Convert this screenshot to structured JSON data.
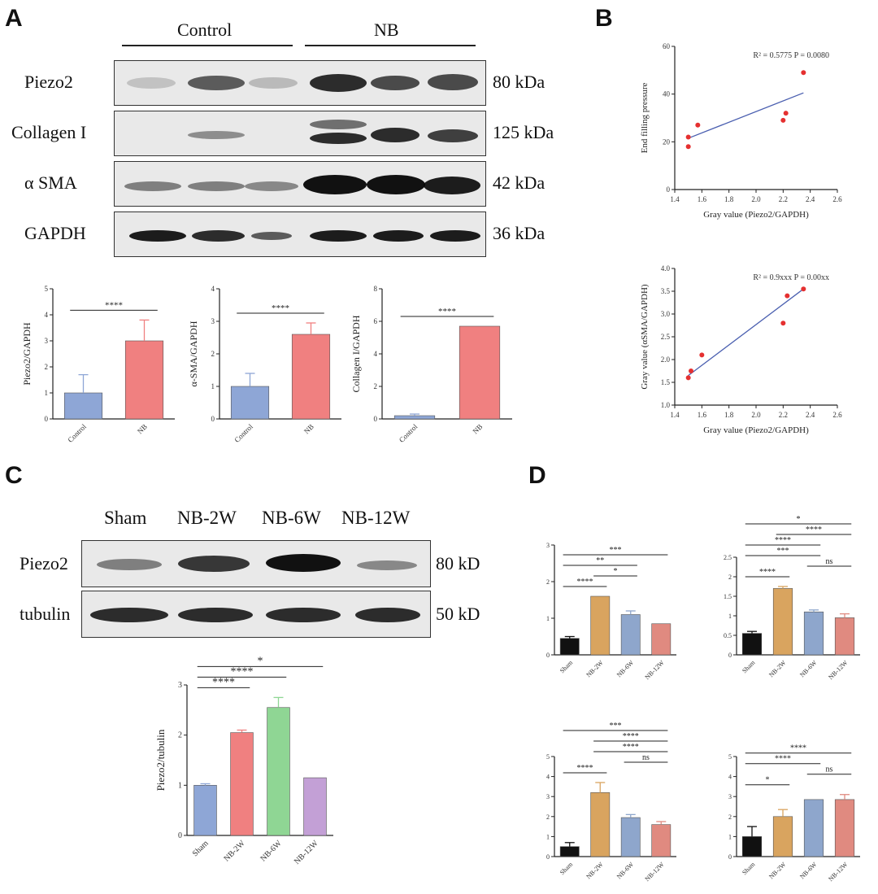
{
  "panels": {
    "A": "A",
    "B": "B",
    "C": "C",
    "D": "D"
  },
  "panelA": {
    "groups": [
      "Control",
      "NB"
    ],
    "blots": [
      {
        "label": "Piezo2",
        "kda": "80 kDa"
      },
      {
        "label": "Collagen I",
        "kda": "125 kDa"
      },
      {
        "label": "α SMA",
        "kda": "42 kDa"
      },
      {
        "label": "GAPDH",
        "kda": "36 kDa"
      }
    ]
  },
  "panelC": {
    "lanes": [
      "Sham",
      "NB-2W",
      "NB-6W",
      "NB-12W"
    ],
    "blots": [
      {
        "label": "Piezo2",
        "kda": "80 kD"
      },
      {
        "label": "tubulin",
        "kda": "50 kD"
      }
    ]
  },
  "colors": {
    "blue": "#8ea6d6",
    "red": "#f08080",
    "green": "#8fd694",
    "purple": "#c3a0d6",
    "black": "#111111",
    "orange": "#d9a45f",
    "steel": "#8ea6cc",
    "salmon": "#e08a80",
    "fit": "#4a5fb0",
    "point": "#e53030"
  },
  "chart_data": [
    {
      "id": "A1",
      "type": "bar",
      "categories": [
        "Control",
        "NB"
      ],
      "values": [
        1.0,
        3.0
      ],
      "errors": [
        0.7,
        0.8
      ],
      "ylim": [
        0,
        5
      ],
      "yticks": [
        0,
        1,
        2,
        3,
        4,
        5
      ],
      "ylabel": "Piezo2/GAPDH",
      "sig": [
        {
          "from": 0,
          "to": 1,
          "label": "****"
        }
      ]
    },
    {
      "id": "A2",
      "type": "bar",
      "categories": [
        "Control",
        "NB"
      ],
      "values": [
        1.0,
        2.6
      ],
      "errors": [
        0.4,
        0.35
      ],
      "ylim": [
        0,
        4
      ],
      "yticks": [
        0,
        1,
        2,
        3,
        4
      ],
      "ylabel": "α-SMA/GAPDH",
      "sig": [
        {
          "from": 0,
          "to": 1,
          "label": "****"
        }
      ]
    },
    {
      "id": "A3",
      "type": "bar",
      "categories": [
        "Control",
        "NB"
      ],
      "values": [
        0.2,
        5.7
      ],
      "errors": [
        0.1,
        0.0
      ],
      "ylim": [
        0,
        8
      ],
      "yticks": [
        0,
        2,
        4,
        6,
        8
      ],
      "ylabel": "Collagen I/GAPDH",
      "sig": [
        {
          "from": 0,
          "to": 1,
          "label": "****"
        }
      ]
    },
    {
      "id": "B1",
      "type": "scatter",
      "x": [
        1.5,
        1.5,
        1.57,
        2.2,
        2.22,
        2.35
      ],
      "y": [
        18,
        22,
        27,
        29,
        32,
        49
      ],
      "fit": [
        [
          1.5,
          21.5
        ],
        [
          2.35,
          40.5
        ]
      ],
      "xlim": [
        1.4,
        2.6
      ],
      "ylim": [
        0,
        60
      ],
      "xticks": [
        "1.4",
        "1.6",
        "1.8",
        "2.0",
        "2.2",
        "2.4",
        "2.6"
      ],
      "yticks": [
        "0",
        "20",
        "40",
        "60"
      ],
      "xlabel": "Gray value (Piezo2/GAPDH)",
      "ylabel": "End filling pressure",
      "annotation": "R² = 0.5775   P = 0.0080"
    },
    {
      "id": "B2",
      "type": "scatter",
      "x": [
        1.5,
        1.52,
        1.6,
        2.2,
        2.23,
        2.35
      ],
      "y": [
        1.6,
        1.75,
        2.1,
        2.8,
        3.4,
        3.55
      ],
      "fit": [
        [
          1.5,
          1.65
        ],
        [
          2.35,
          3.55
        ]
      ],
      "xlim": [
        1.4,
        2.6
      ],
      "ylim": [
        1.0,
        4.0
      ],
      "xticks": [
        "1.4",
        "1.6",
        "1.8",
        "2.0",
        "2.2",
        "2.4",
        "2.6"
      ],
      "yticks": [
        "1.0",
        "1.5",
        "2.0",
        "2.5",
        "3.0",
        "3.5",
        "4.0"
      ],
      "xlabel": "Gray value (Piezo2/GAPDH)",
      "ylabel": "Gray value (αSMA/GAPDH)",
      "annotation": "R² = 0.9xxx   P = 0.00xx"
    },
    {
      "id": "C1",
      "type": "bar",
      "categories": [
        "Sham",
        "NB-2W",
        "NB-6W",
        "NB-12W"
      ],
      "values": [
        1.0,
        2.05,
        2.55,
        1.15
      ],
      "errors": [
        0.03,
        0.05,
        0.2,
        0.0
      ],
      "ylim": [
        0,
        3
      ],
      "yticks": [
        0,
        1,
        2,
        3
      ],
      "ylabel": "Piezo2/tubulin",
      "sig": [
        {
          "from": 0,
          "to": 1,
          "label": "****"
        },
        {
          "from": 0,
          "to": 2,
          "label": "****"
        },
        {
          "from": 0,
          "to": 3,
          "label": "*"
        }
      ]
    },
    {
      "id": "D1",
      "type": "bar",
      "categories": [
        "Sham",
        "NB-2W",
        "NB-6W",
        "NB-12W"
      ],
      "values": [
        0.45,
        1.6,
        1.1,
        0.85
      ],
      "errors": [
        0.05,
        0.0,
        0.1,
        0.0
      ],
      "ylim": [
        0,
        3
      ],
      "yticks": [
        0,
        1,
        2,
        3
      ],
      "ylabel": "",
      "sig": [
        {
          "from": 0,
          "to": 1,
          "label": "****"
        },
        {
          "from": 1,
          "to": 2,
          "label": "*"
        },
        {
          "from": 0,
          "to": 2,
          "label": "**"
        },
        {
          "from": 0,
          "to": 3,
          "label": "***"
        }
      ]
    },
    {
      "id": "D2",
      "type": "bar",
      "categories": [
        "Sham",
        "NB-2W",
        "NB-6W",
        "NB-12W"
      ],
      "values": [
        0.55,
        1.7,
        1.1,
        0.95
      ],
      "errors": [
        0.05,
        0.05,
        0.05,
        0.1
      ],
      "ylim": [
        0,
        2.5
      ],
      "yticks": [
        0,
        0.5,
        1,
        1.5,
        2,
        2.5
      ],
      "ylabel": "",
      "sig": [
        {
          "from": 0,
          "to": 1,
          "label": "****"
        },
        {
          "from": 2,
          "to": 3,
          "label": "ns"
        },
        {
          "from": 0,
          "to": 2,
          "label": "***"
        },
        {
          "from": 0,
          "to": 2,
          "label": "****"
        },
        {
          "from": 1,
          "to": 3,
          "label": "****"
        },
        {
          "from": 0,
          "to": 3,
          "label": "*"
        }
      ]
    },
    {
      "id": "D3",
      "type": "bar",
      "categories": [
        "Sham",
        "NB-2W",
        "NB-6W",
        "NB-12W"
      ],
      "values": [
        0.5,
        3.2,
        1.95,
        1.6
      ],
      "errors": [
        0.2,
        0.5,
        0.15,
        0.15
      ],
      "ylim": [
        0,
        5
      ],
      "yticks": [
        0,
        1,
        2,
        3,
        4,
        5
      ],
      "ylabel": "",
      "sig": [
        {
          "from": 0,
          "to": 1,
          "label": "****"
        },
        {
          "from": 2,
          "to": 3,
          "label": "ns"
        },
        {
          "from": 1,
          "to": 3,
          "label": "****"
        },
        {
          "from": 1,
          "to": 3,
          "label": "****"
        },
        {
          "from": 0,
          "to": 3,
          "label": "***"
        }
      ]
    },
    {
      "id": "D4",
      "type": "bar",
      "categories": [
        "Sham",
        "NB-2W",
        "NB-6W",
        "NB-12W"
      ],
      "values": [
        1.0,
        2.0,
        2.85,
        2.85
      ],
      "errors": [
        0.5,
        0.35,
        0.0,
        0.25
      ],
      "ylim": [
        0,
        5
      ],
      "yticks": [
        0,
        1,
        2,
        3,
        4,
        5
      ],
      "ylabel": "",
      "sig": [
        {
          "from": 0,
          "to": 1,
          "label": "*"
        },
        {
          "from": 2,
          "to": 3,
          "label": "ns"
        },
        {
          "from": 0,
          "to": 2,
          "label": "****"
        },
        {
          "from": 0,
          "to": 3,
          "label": "****"
        }
      ]
    }
  ]
}
